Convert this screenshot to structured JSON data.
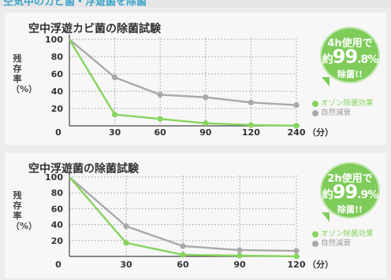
{
  "header_fragment": "空気中のカビ菌・浮遊菌を除菌",
  "colors": {
    "ozone": "#86d45e",
    "natural": "#a9a9a9",
    "badge": "#7fcc5a",
    "grid": "#9a9a9a"
  },
  "icons": {
    "legend_marker": "circle-dot-icon"
  },
  "chart_data": [
    {
      "type": "line",
      "title": "空中浮遊カビ菌の除菌試験",
      "ylabel": "残存率（%）",
      "xlabel": "",
      "x_unit": "（分）",
      "x_ticks": [
        "0",
        "30",
        "60",
        "90",
        "120",
        "240"
      ],
      "x_positions": [
        0,
        30,
        60,
        90,
        120,
        150
      ],
      "y_ticks": [
        "20",
        "40",
        "60",
        "80",
        "100"
      ],
      "ylim": [
        0,
        100
      ],
      "grid": true,
      "legend_position": "right",
      "badge": {
        "line1": "4h使用で",
        "prefix": "約",
        "main": "99",
        "decimal": ".8",
        "unit": "%",
        "line3": "除菌!!"
      },
      "series": [
        {
          "name": "オゾン除菌効果",
          "color": "#86d45e",
          "x": [
            0,
            30,
            60,
            90,
            120,
            150
          ],
          "values": [
            100,
            13,
            8,
            3,
            1,
            0.2
          ]
        },
        {
          "name": "自然減衰",
          "color": "#a9a9a9",
          "x": [
            0,
            30,
            60,
            90,
            120,
            150
          ],
          "values": [
            100,
            56,
            36,
            33,
            27,
            24
          ]
        }
      ]
    },
    {
      "type": "line",
      "title": "空中浮遊菌の除菌試験",
      "ylabel": "残存率（%）",
      "xlabel": "",
      "x_unit": "（分）",
      "x_ticks": [
        "0",
        "30",
        "60",
        "90",
        "120"
      ],
      "x_positions": [
        0,
        30,
        60,
        90,
        120
      ],
      "y_ticks": [
        "20",
        "40",
        "60",
        "80",
        "100"
      ],
      "ylim": [
        0,
        100
      ],
      "grid": true,
      "legend_position": "right",
      "badge": {
        "line1": "2h使用で",
        "prefix": "約",
        "main": "99",
        "decimal": ".9",
        "unit": "%",
        "line3": "除菌!!"
      },
      "series": [
        {
          "name": "オゾン除菌効果",
          "color": "#86d45e",
          "x": [
            0,
            30,
            60,
            90,
            120
          ],
          "values": [
            100,
            17,
            2,
            1,
            0.1
          ]
        },
        {
          "name": "自然減衰",
          "color": "#a9a9a9",
          "x": [
            0,
            30,
            60,
            90,
            120
          ],
          "values": [
            100,
            38,
            13,
            8,
            7
          ]
        }
      ]
    }
  ]
}
